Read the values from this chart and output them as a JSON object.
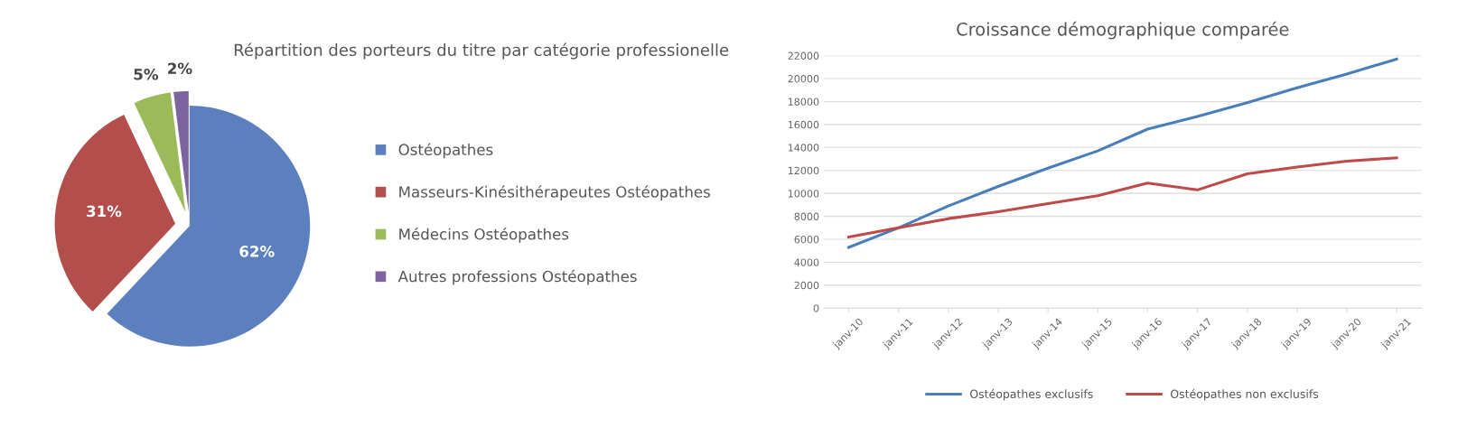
{
  "chart_data": [
    {
      "type": "pie",
      "title": "Répartition des porteurs du titre par catégorie professionelle",
      "categories": [
        "Ostéopathes",
        "Masseurs-Kinésithérapeutes Ostéopathes",
        "Médecins Ostéopathes",
        "Autres professions Ostéopathes"
      ],
      "values": [
        62,
        31,
        5,
        2
      ],
      "colors": [
        "#5b80bd",
        "#b24f4c",
        "#9bbb59",
        "#7b64a0"
      ],
      "value_labels": [
        "62%",
        "31%",
        "5%",
        "2%"
      ],
      "legend": "right"
    },
    {
      "type": "line",
      "title": "Croissance démographique comparée",
      "categories": [
        "janv-10",
        "janv-11",
        "janv-12",
        "janv-13",
        "janv-14",
        "janv-15",
        "janv-16",
        "janv-17",
        "janv-18",
        "janv-19",
        "janv-20",
        "janv-21"
      ],
      "series": [
        {
          "name": "Ostéopathes exclusifs",
          "color": "#4a7ebb",
          "values": [
            5300,
            7000,
            8900,
            10600,
            12200,
            13700,
            15600,
            16700,
            17900,
            19200,
            20400,
            21700
          ]
        },
        {
          "name": "Ostéopathes non exclusifs",
          "color": "#be4b48",
          "values": [
            6200,
            7000,
            7800,
            8400,
            9100,
            9800,
            10900,
            10300,
            11700,
            12300,
            12800,
            13100
          ]
        }
      ],
      "ylim": [
        0,
        22000
      ],
      "yticks": [
        0,
        2000,
        4000,
        6000,
        8000,
        10000,
        12000,
        14000,
        16000,
        18000,
        20000,
        22000
      ],
      "grid": "y",
      "legend": "bottom",
      "marker": "none",
      "line_style": "solid"
    }
  ]
}
